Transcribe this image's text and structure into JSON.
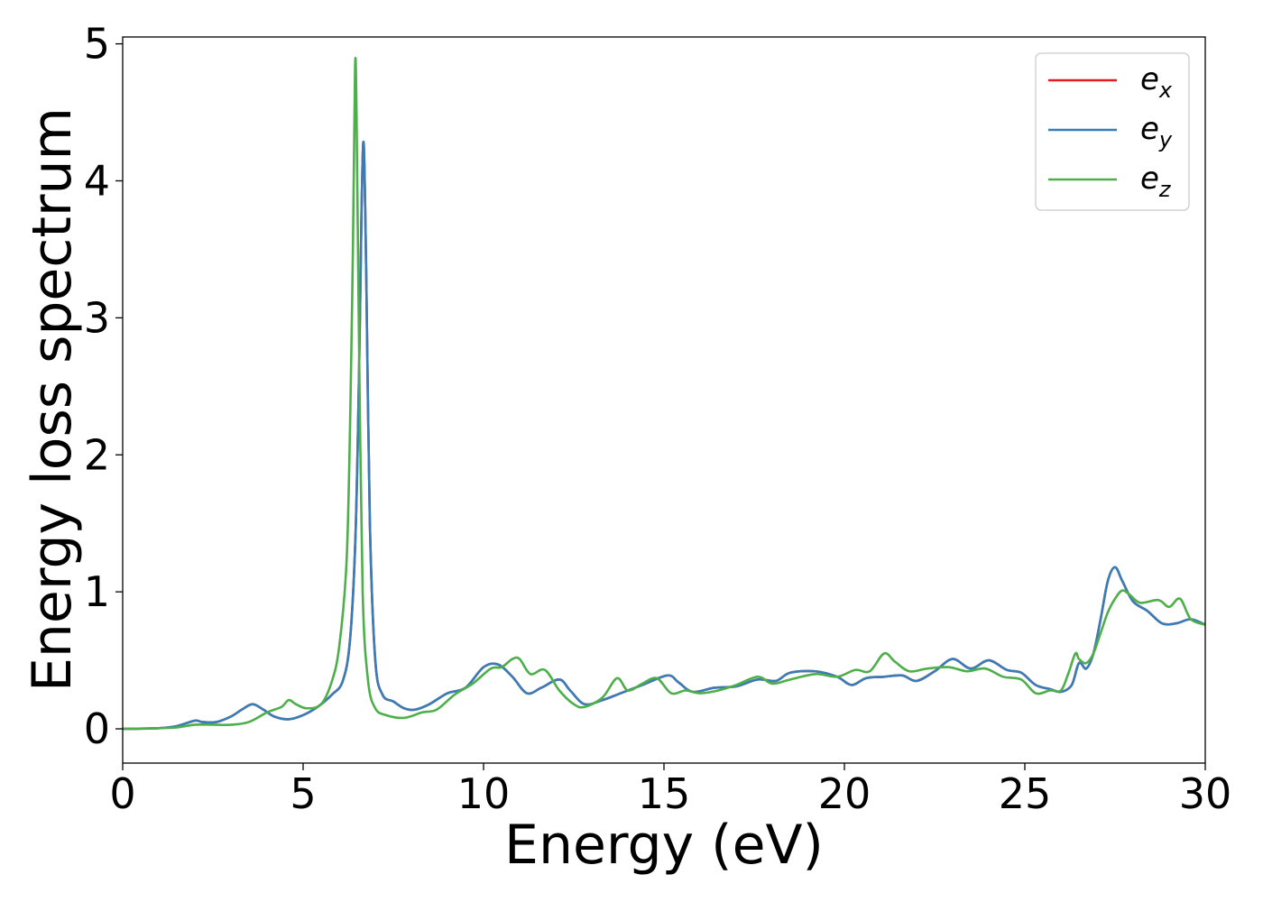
{
  "chart_data": {
    "type": "line",
    "title": "",
    "xlabel": "Energy (eV)",
    "ylabel": "Energy loss spectrum",
    "xlim": [
      0,
      30
    ],
    "ylim": [
      -0.25,
      5.05
    ],
    "xticks": [
      0,
      5,
      10,
      15,
      20,
      25,
      30
    ],
    "yticks": [
      0,
      1,
      2,
      3,
      4,
      5
    ],
    "xtick_labels": [
      "0",
      "5",
      "10",
      "15",
      "20",
      "25",
      "30"
    ],
    "ytick_labels": [
      "0",
      "1",
      "2",
      "3",
      "4",
      "5"
    ],
    "grid": false,
    "legend_position": "top-right",
    "series": [
      {
        "name": "e_x",
        "label_main": "e",
        "label_sub": "x",
        "color": "#e41a1c",
        "x": [
          0,
          1,
          1.5,
          2,
          2.2,
          2.6,
          3,
          3.3,
          3.6,
          3.9,
          4.2,
          4.6,
          5,
          5.4,
          5.8,
          6.1,
          6.3,
          6.45,
          6.55,
          6.62,
          6.68,
          6.75,
          6.85,
          7.0,
          7.2,
          7.5,
          7.8,
          8.1,
          8.5,
          9,
          9.5,
          10,
          10.4,
          10.8,
          11.2,
          11.6,
          12.1,
          12.4,
          12.8,
          13.3,
          13.8,
          14.4,
          15.1,
          15.4,
          15.8,
          16.4,
          17,
          17.6,
          18.1,
          18.5,
          19.2,
          19.8,
          20.2,
          20.6,
          21.1,
          21.6,
          22.0,
          22.5,
          23.0,
          23.5,
          24.0,
          24.5,
          24.9,
          25.3,
          25.7,
          26.0,
          26.3,
          26.5,
          26.7,
          26.9,
          27.1,
          27.3,
          27.5,
          27.7,
          28.0,
          28.4,
          28.8,
          29.2,
          29.6,
          30
        ],
        "y": [
          0,
          0.005,
          0.02,
          0.06,
          0.05,
          0.05,
          0.09,
          0.14,
          0.18,
          0.14,
          0.09,
          0.07,
          0.1,
          0.16,
          0.25,
          0.35,
          0.65,
          1.4,
          2.6,
          3.8,
          4.27,
          3.3,
          1.5,
          0.5,
          0.25,
          0.2,
          0.15,
          0.14,
          0.18,
          0.26,
          0.3,
          0.45,
          0.47,
          0.38,
          0.26,
          0.3,
          0.36,
          0.28,
          0.18,
          0.21,
          0.26,
          0.32,
          0.39,
          0.34,
          0.27,
          0.3,
          0.31,
          0.36,
          0.35,
          0.41,
          0.42,
          0.38,
          0.32,
          0.37,
          0.38,
          0.39,
          0.35,
          0.42,
          0.51,
          0.44,
          0.5,
          0.43,
          0.41,
          0.32,
          0.29,
          0.27,
          0.32,
          0.48,
          0.44,
          0.55,
          0.8,
          1.08,
          1.18,
          1.08,
          0.93,
          0.86,
          0.77,
          0.77,
          0.8,
          0.76
        ]
      },
      {
        "name": "e_y",
        "label_main": "e",
        "label_sub": "y",
        "color": "#377eb8",
        "x": [
          0,
          1,
          1.5,
          2,
          2.2,
          2.6,
          3,
          3.3,
          3.6,
          3.9,
          4.2,
          4.6,
          5,
          5.4,
          5.8,
          6.1,
          6.3,
          6.45,
          6.55,
          6.62,
          6.68,
          6.75,
          6.85,
          7.0,
          7.2,
          7.5,
          7.8,
          8.1,
          8.5,
          9,
          9.5,
          10,
          10.4,
          10.8,
          11.2,
          11.6,
          12.1,
          12.4,
          12.8,
          13.3,
          13.8,
          14.4,
          15.1,
          15.4,
          15.8,
          16.4,
          17,
          17.6,
          18.1,
          18.5,
          19.2,
          19.8,
          20.2,
          20.6,
          21.1,
          21.6,
          22.0,
          22.5,
          23.0,
          23.5,
          24.0,
          24.5,
          24.9,
          25.3,
          25.7,
          26.0,
          26.3,
          26.5,
          26.7,
          26.9,
          27.1,
          27.3,
          27.5,
          27.7,
          28.0,
          28.4,
          28.8,
          29.2,
          29.6,
          30
        ],
        "y": [
          0,
          0.005,
          0.02,
          0.06,
          0.05,
          0.05,
          0.09,
          0.14,
          0.18,
          0.14,
          0.09,
          0.07,
          0.1,
          0.16,
          0.25,
          0.35,
          0.65,
          1.4,
          2.6,
          3.8,
          4.27,
          3.3,
          1.5,
          0.5,
          0.25,
          0.2,
          0.15,
          0.14,
          0.18,
          0.26,
          0.3,
          0.45,
          0.47,
          0.38,
          0.26,
          0.3,
          0.36,
          0.28,
          0.18,
          0.21,
          0.26,
          0.32,
          0.39,
          0.34,
          0.27,
          0.3,
          0.31,
          0.36,
          0.35,
          0.41,
          0.42,
          0.38,
          0.32,
          0.37,
          0.38,
          0.39,
          0.35,
          0.42,
          0.51,
          0.44,
          0.5,
          0.43,
          0.41,
          0.32,
          0.29,
          0.27,
          0.32,
          0.48,
          0.44,
          0.55,
          0.8,
          1.08,
          1.18,
          1.08,
          0.93,
          0.86,
          0.77,
          0.77,
          0.8,
          0.76
        ]
      },
      {
        "name": "e_z",
        "label_main": "e",
        "label_sub": "z",
        "color": "#4daf4a",
        "x": [
          0,
          1,
          1.5,
          2,
          2.5,
          3,
          3.5,
          4,
          4.4,
          4.6,
          4.8,
          5.1,
          5.5,
          5.8,
          6.0,
          6.2,
          6.3,
          6.38,
          6.44,
          6.48,
          6.55,
          6.65,
          6.8,
          7.0,
          7.3,
          7.8,
          8.3,
          8.7,
          9.2,
          9.7,
          10.2,
          10.5,
          10.8,
          11.0,
          11.3,
          11.7,
          12.1,
          12.5,
          12.8,
          13.3,
          13.7,
          14.0,
          14.4,
          14.8,
          15.2,
          15.6,
          16.0,
          16.5,
          17.0,
          17.6,
          18.0,
          18.5,
          19.2,
          19.8,
          20.3,
          20.7,
          21.1,
          21.4,
          21.8,
          22.3,
          22.9,
          23.4,
          23.9,
          24.4,
          24.9,
          25.3,
          25.7,
          26.0,
          26.2,
          26.4,
          26.5,
          26.7,
          26.9,
          27.1,
          27.3,
          27.5,
          27.7,
          27.9,
          28.2,
          28.7,
          29.0,
          29.3,
          29.6,
          30
        ],
        "y": [
          0,
          0.005,
          0.01,
          0.03,
          0.03,
          0.03,
          0.05,
          0.12,
          0.16,
          0.21,
          0.18,
          0.15,
          0.18,
          0.35,
          0.6,
          1.2,
          2.2,
          3.5,
          4.83,
          4.5,
          2.8,
          1.0,
          0.35,
          0.15,
          0.1,
          0.08,
          0.12,
          0.14,
          0.25,
          0.33,
          0.44,
          0.45,
          0.51,
          0.51,
          0.4,
          0.43,
          0.28,
          0.18,
          0.16,
          0.23,
          0.37,
          0.28,
          0.33,
          0.37,
          0.26,
          0.28,
          0.26,
          0.28,
          0.32,
          0.38,
          0.33,
          0.36,
          0.4,
          0.38,
          0.43,
          0.42,
          0.55,
          0.49,
          0.42,
          0.44,
          0.45,
          0.42,
          0.44,
          0.38,
          0.36,
          0.26,
          0.28,
          0.28,
          0.4,
          0.55,
          0.51,
          0.48,
          0.55,
          0.7,
          0.85,
          0.95,
          1.01,
          0.98,
          0.92,
          0.94,
          0.89,
          0.95,
          0.8,
          0.76
        ]
      }
    ]
  }
}
